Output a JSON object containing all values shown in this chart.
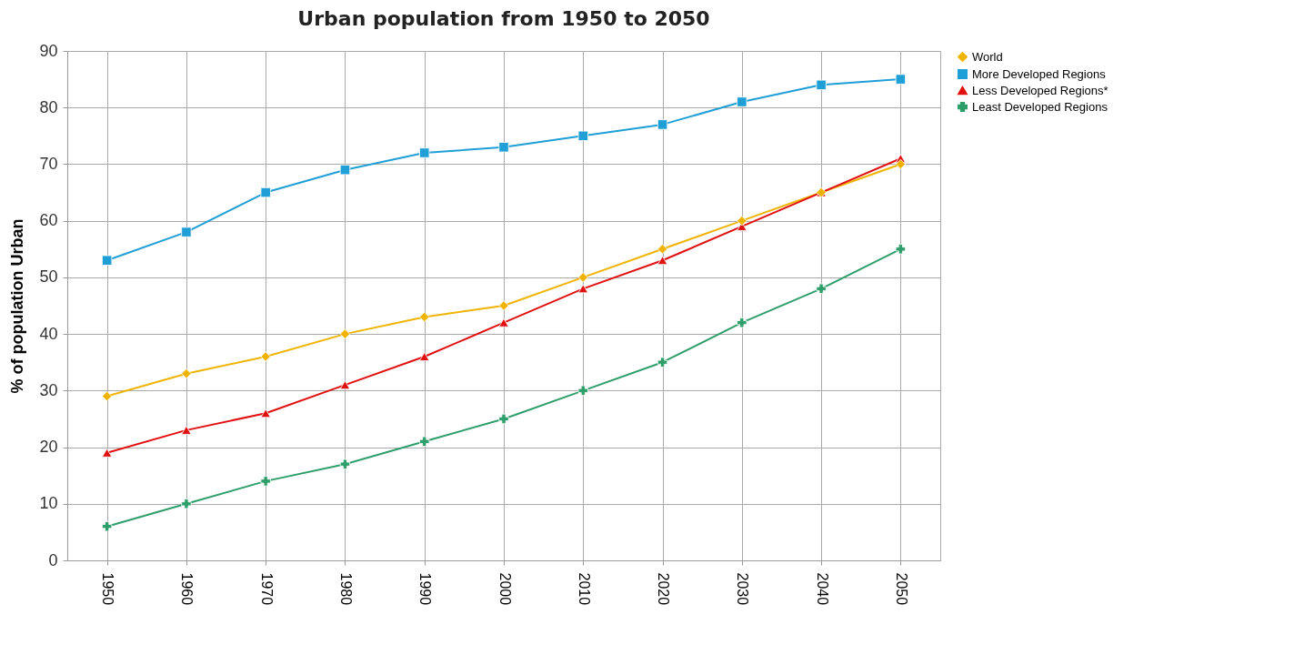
{
  "chart_data": {
    "type": "line",
    "title": "Urban population from 1950 to 2050",
    "ylabel": "% of population Urban",
    "categories": [
      "1950",
      "1960",
      "1970",
      "1980",
      "1990",
      "2000",
      "2010",
      "2020",
      "2030",
      "2040",
      "2050"
    ],
    "series": [
      {
        "name": "World",
        "color": "#f0b400",
        "marker": "diamond",
        "values": [
          29,
          33,
          36,
          40,
          43,
          45,
          50,
          55,
          60,
          65,
          70
        ]
      },
      {
        "name": "More Developed Regions",
        "color": "#1f9fd6",
        "marker": "square",
        "values": [
          53,
          58,
          65,
          69,
          72,
          73,
          75,
          77,
          81,
          84,
          85
        ]
      },
      {
        "name": "Less Developed Regions*",
        "color": "#e01010",
        "marker": "triangle",
        "values": [
          19,
          23,
          26,
          31,
          36,
          42,
          48,
          53,
          59,
          65,
          71
        ]
      },
      {
        "name": "Least Developed Regions",
        "color": "#2e9e6a",
        "marker": "cross",
        "values": [
          6,
          10,
          14,
          17,
          21,
          25,
          30,
          35,
          42,
          48,
          55
        ]
      }
    ],
    "ylim": [
      0,
      90
    ],
    "yticks": [
      0,
      10,
      20,
      30,
      40,
      50,
      60,
      70,
      80,
      90
    ],
    "grid": true,
    "legend": "right"
  }
}
